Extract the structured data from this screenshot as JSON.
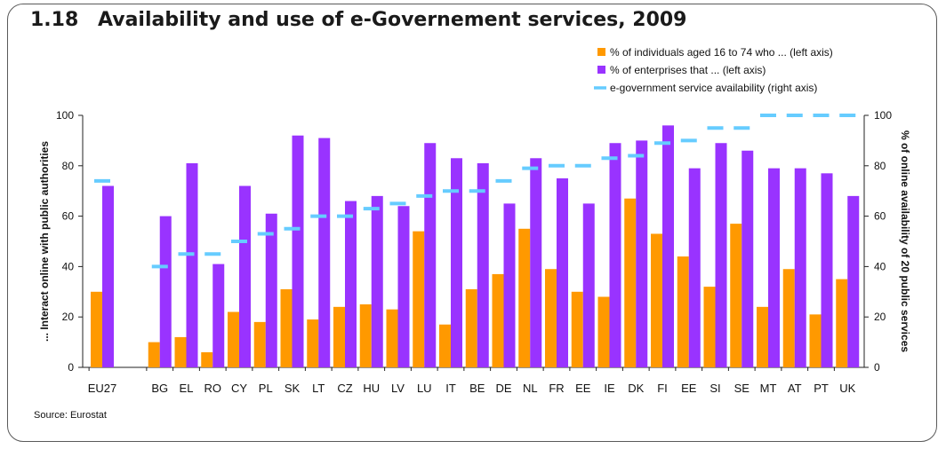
{
  "figure": {
    "number": "1.18",
    "title": "Availability and use of e-Governement services, 2009",
    "source": "Source: Eurostat"
  },
  "colors": {
    "individuals": "#FF9900",
    "enterprises": "#9933FF",
    "availability": "#66CCFF",
    "axis": "#222222"
  },
  "chart_data": {
    "type": "bar",
    "categories": [
      "EU27",
      "BG",
      "EL",
      "RO",
      "CY",
      "PL",
      "SK",
      "LT",
      "CZ",
      "HU",
      "LV",
      "LU",
      "IT",
      "BE",
      "DE",
      "NL",
      "FR",
      "EE",
      "IE",
      "DK",
      "FI",
      "EE",
      "SI",
      "SE",
      "MT",
      "AT",
      "PT",
      "UK"
    ],
    "series": [
      {
        "name": "% of individuals aged 16 to 74 who ... (left axis)",
        "axis": "left",
        "kind": "bar",
        "values": [
          30,
          10,
          12,
          6,
          22,
          18,
          31,
          19,
          24,
          25,
          23,
          54,
          17,
          31,
          37,
          55,
          39,
          30,
          28,
          67,
          53,
          44,
          32,
          57,
          24,
          39,
          21,
          35
        ]
      },
      {
        "name": "% of enterprises that ... (left axis)",
        "axis": "left",
        "kind": "bar",
        "values": [
          72,
          60,
          81,
          41,
          72,
          61,
          92,
          91,
          66,
          68,
          64,
          89,
          83,
          81,
          65,
          83,
          75,
          65,
          89,
          90,
          96,
          79,
          89,
          86,
          79,
          79,
          77,
          68
        ]
      },
      {
        "name": "e-government service availability (right axis)",
        "axis": "right",
        "kind": "marker",
        "values": [
          74,
          40,
          45,
          45,
          50,
          53,
          55,
          60,
          60,
          63,
          65,
          68,
          70,
          70,
          74,
          79,
          80,
          80,
          83,
          84,
          89,
          90,
          95,
          95,
          100,
          100,
          100,
          100
        ]
      }
    ],
    "ylabel": "... Interact online with public authorities",
    "y2label": "% of online availability of 20 public services",
    "ylim": [
      0,
      100
    ],
    "y2lim": [
      0,
      100
    ],
    "yticks": [
      0,
      20,
      40,
      60,
      80,
      100
    ],
    "legend_position": "top-right",
    "grid": false
  }
}
